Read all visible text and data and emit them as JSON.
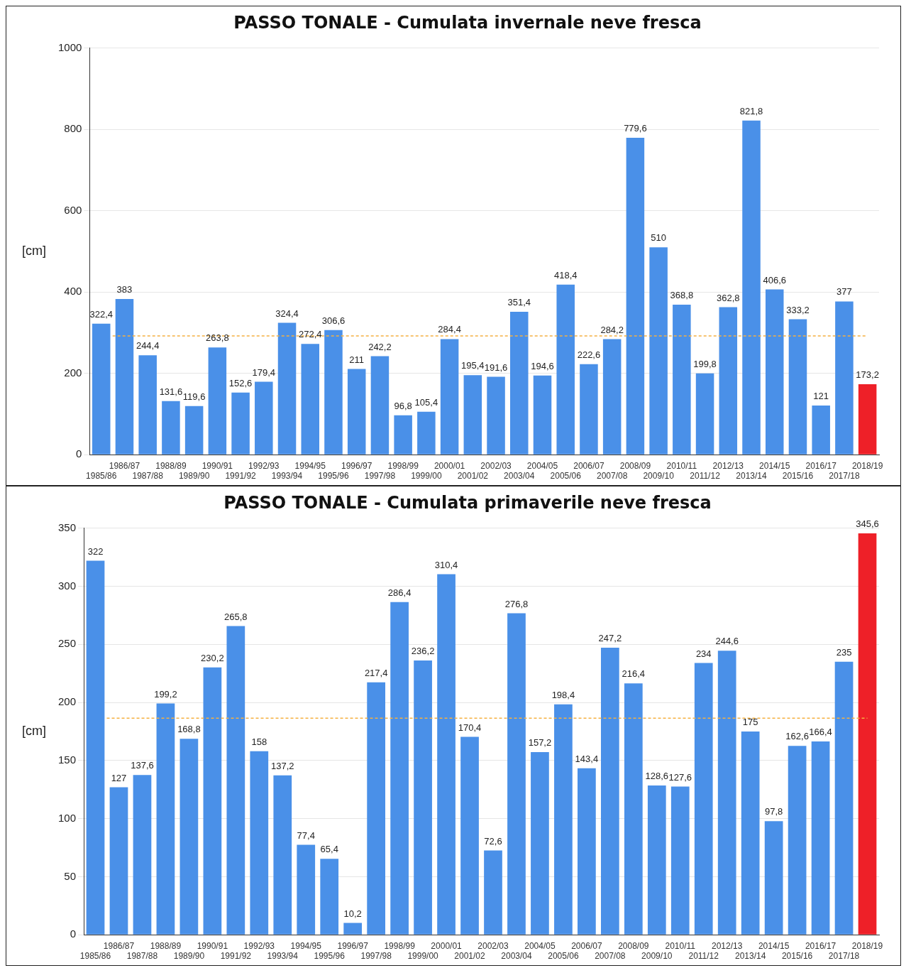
{
  "chart_data": [
    {
      "type": "bar",
      "title": "PASSO TONALE - Cumulata invernale neve fresca",
      "ylabel": "[cm]",
      "categories": [
        "1985/86",
        "1986/87",
        "1987/88",
        "1988/89",
        "1989/90",
        "1990/91",
        "1991/92",
        "1992/93",
        "1993/94",
        "1994/95",
        "1995/96",
        "1996/97",
        "1997/98",
        "1998/99",
        "1999/00",
        "2000/01",
        "2001/02",
        "2002/03",
        "2003/04",
        "2004/05",
        "2005/06",
        "2006/07",
        "2007/08",
        "2008/09",
        "2009/10",
        "2010/11",
        "2011/12",
        "2012/13",
        "2013/14",
        "2014/15",
        "2015/16",
        "2016/17",
        "2017/18",
        "2018/19"
      ],
      "values": [
        322.4,
        383,
        244.4,
        131.6,
        119.6,
        263.8,
        152.6,
        179.4,
        324.4,
        272.4,
        306.6,
        211,
        242.2,
        96.8,
        105.4,
        284.4,
        195.4,
        191.6,
        351.4,
        194.6,
        418.4,
        222.6,
        284.2,
        779.6,
        510,
        368.8,
        199.8,
        362.8,
        821.8,
        406.6,
        333.2,
        121,
        377,
        173.2
      ],
      "value_labels": [
        "322,4",
        "383",
        "244,4",
        "131,6",
        "119,6",
        "263,8",
        "152,6",
        "179,4",
        "324,4",
        "272,4",
        "306,6",
        "211",
        "242,2",
        "96,8",
        "105,4",
        "284,4",
        "195,4",
        "191,6",
        "351,4",
        "194,6",
        "418,4",
        "222,6",
        "284,2",
        "779,6",
        "510",
        "368,8",
        "199,8",
        "362,8",
        "821,8",
        "406,6",
        "333,2",
        "121",
        "377",
        "173,2"
      ],
      "colors": [
        "#4a90e8",
        "#4a90e8",
        "#4a90e8",
        "#4a90e8",
        "#4a90e8",
        "#4a90e8",
        "#4a90e8",
        "#4a90e8",
        "#4a90e8",
        "#4a90e8",
        "#4a90e8",
        "#4a90e8",
        "#4a90e8",
        "#4a90e8",
        "#4a90e8",
        "#4a90e8",
        "#4a90e8",
        "#4a90e8",
        "#4a90e8",
        "#4a90e8",
        "#4a90e8",
        "#4a90e8",
        "#4a90e8",
        "#4a90e8",
        "#4a90e8",
        "#4a90e8",
        "#4a90e8",
        "#4a90e8",
        "#4a90e8",
        "#4a90e8",
        "#4a90e8",
        "#4a90e8",
        "#4a90e8",
        "#ee2028"
      ],
      "ylim": [
        0,
        1000
      ],
      "yticks": [
        0,
        200,
        400,
        600,
        800,
        1000
      ],
      "grid": "y",
      "legend": false,
      "ref_lines": [
        {
          "axis": "y",
          "value": 292,
          "color": "#f5b041",
          "line_style": "dashed"
        }
      ]
    },
    {
      "type": "bar",
      "title": "PASSO TONALE - Cumulata primaverile neve fresca",
      "ylabel": "[cm]",
      "categories": [
        "1985/86",
        "1986/87",
        "1987/88",
        "1988/89",
        "1989/90",
        "1990/91",
        "1991/92",
        "1992/93",
        "1993/94",
        "1994/95",
        "1995/96",
        "1996/97",
        "1997/98",
        "1998/99",
        "1999/00",
        "2000/01",
        "2001/02",
        "2002/03",
        "2003/04",
        "2004/05",
        "2005/06",
        "2006/07",
        "2007/08",
        "2008/09",
        "2009/10",
        "2010/11",
        "2011/12",
        "2012/13",
        "2013/14",
        "2014/15",
        "2015/16",
        "2016/17",
        "2017/18",
        "2018/19"
      ],
      "values": [
        322,
        127,
        137.6,
        199.2,
        168.8,
        230.2,
        265.8,
        158,
        137.2,
        77.4,
        65.4,
        10.2,
        217.4,
        286.4,
        236.2,
        310.4,
        170.4,
        72.6,
        276.8,
        157.2,
        198.4,
        143.4,
        247.2,
        216.4,
        128.6,
        127.6,
        234,
        244.6,
        175,
        97.8,
        162.6,
        166.4,
        235,
        345.6
      ],
      "value_labels": [
        "322",
        "127",
        "137,6",
        "199,2",
        "168,8",
        "230,2",
        "265,8",
        "158",
        "137,2",
        "77,4",
        "65,4",
        "10,2",
        "217,4",
        "286,4",
        "236,2",
        "310,4",
        "170,4",
        "72,6",
        "276,8",
        "157,2",
        "198,4",
        "143,4",
        "247,2",
        "216,4",
        "128,6",
        "127,6",
        "234",
        "244,6",
        "175",
        "97,8",
        "162,6",
        "166,4",
        "235",
        "345,6"
      ],
      "colors": [
        "#4a90e8",
        "#4a90e8",
        "#4a90e8",
        "#4a90e8",
        "#4a90e8",
        "#4a90e8",
        "#4a90e8",
        "#4a90e8",
        "#4a90e8",
        "#4a90e8",
        "#4a90e8",
        "#4a90e8",
        "#4a90e8",
        "#4a90e8",
        "#4a90e8",
        "#4a90e8",
        "#4a90e8",
        "#4a90e8",
        "#4a90e8",
        "#4a90e8",
        "#4a90e8",
        "#4a90e8",
        "#4a90e8",
        "#4a90e8",
        "#4a90e8",
        "#4a90e8",
        "#4a90e8",
        "#4a90e8",
        "#4a90e8",
        "#4a90e8",
        "#4a90e8",
        "#4a90e8",
        "#4a90e8",
        "#ee2028"
      ],
      "ylim": [
        0,
        350
      ],
      "yticks": [
        0,
        50,
        100,
        150,
        200,
        250,
        300,
        350
      ],
      "grid": "y",
      "legend": false,
      "ref_lines": [
        {
          "axis": "y",
          "value": 186.4,
          "color": "#f5b041",
          "line_style": "dashed"
        }
      ]
    }
  ]
}
